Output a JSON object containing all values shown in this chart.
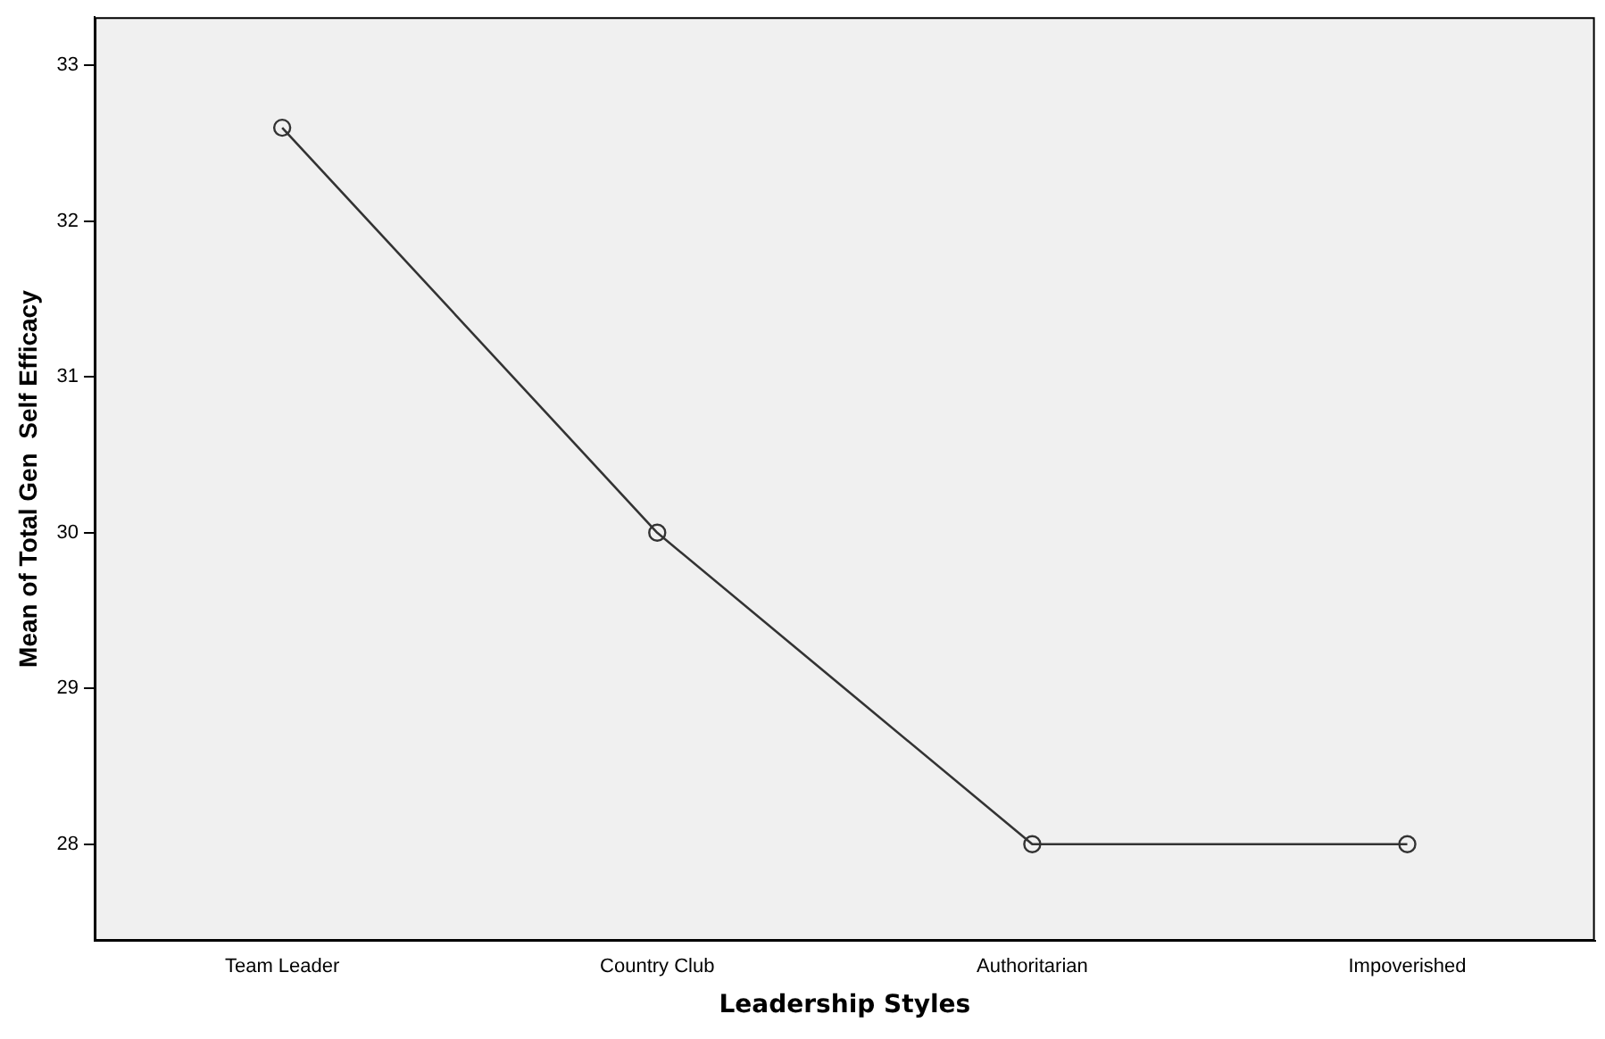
{
  "chart_data": {
    "type": "line",
    "xlabel": "Leadership Styles",
    "ylabel": "Mean of Total Gen  Self Efficacy",
    "categories": [
      "Team Leader",
      "Country Club",
      "Authoritarian",
      "Impoverished"
    ],
    "series": [
      {
        "color": "#333333",
        "values": [
          32.6,
          30.0,
          28.0,
          28.0
        ]
      }
    ],
    "ylim": [
      27.38,
      33.31
    ],
    "yticks": [
      28,
      29,
      30,
      31,
      32,
      33
    ],
    "grid": false,
    "legend": false,
    "marker": "circle",
    "line_style": "solid"
  }
}
